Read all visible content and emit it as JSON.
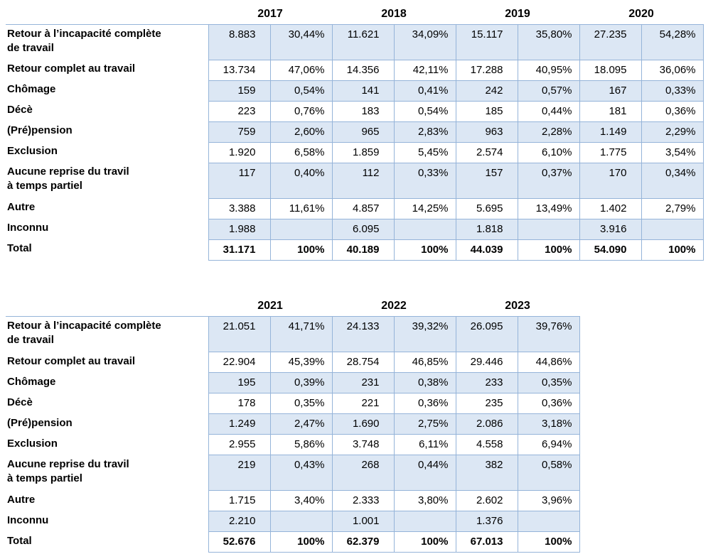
{
  "styles": {
    "band_fill": "#dce7f4",
    "border_color": "#95b4d9",
    "text_color": "#000000",
    "background": "#ffffff"
  },
  "tables": [
    {
      "name": "outcomes-table-2017-2020",
      "years": [
        "2017",
        "2018",
        "2019",
        "2020"
      ],
      "rows": [
        {
          "label_lines": [
            "Retour à l’incapacité complète",
            "de travail"
          ],
          "tall": true,
          "banded": true,
          "total": false,
          "cells": [
            [
              "8.883",
              "30,44%"
            ],
            [
              "11.621",
              "34,09%"
            ],
            [
              "15.117",
              "35,80%"
            ],
            [
              "27.235",
              "54,28%"
            ]
          ]
        },
        {
          "label_lines": [
            "Retour complet au travail"
          ],
          "tall": false,
          "banded": false,
          "total": false,
          "cells": [
            [
              "13.734",
              "47,06%"
            ],
            [
              "14.356",
              "42,11%"
            ],
            [
              "17.288",
              "40,95%"
            ],
            [
              "18.095",
              "36,06%"
            ]
          ]
        },
        {
          "label_lines": [
            "Chômage"
          ],
          "tall": false,
          "banded": true,
          "total": false,
          "cells": [
            [
              "159",
              "0,54%"
            ],
            [
              "141",
              "0,41%"
            ],
            [
              "242",
              "0,57%"
            ],
            [
              "167",
              "0,33%"
            ]
          ]
        },
        {
          "label_lines": [
            "Décè"
          ],
          "tall": false,
          "banded": false,
          "total": false,
          "cells": [
            [
              "223",
              "0,76%"
            ],
            [
              "183",
              "0,54%"
            ],
            [
              "185",
              "0,44%"
            ],
            [
              "181",
              "0,36%"
            ]
          ]
        },
        {
          "label_lines": [
            "(Pré)pension"
          ],
          "tall": false,
          "banded": true,
          "total": false,
          "cells": [
            [
              "759",
              "2,60%"
            ],
            [
              "965",
              "2,83%"
            ],
            [
              "963",
              "2,28%"
            ],
            [
              "1.149",
              "2,29%"
            ]
          ]
        },
        {
          "label_lines": [
            "Exclusion"
          ],
          "tall": false,
          "banded": false,
          "total": false,
          "cells": [
            [
              "1.920",
              "6,58%"
            ],
            [
              "1.859",
              "5,45%"
            ],
            [
              "2.574",
              "6,10%"
            ],
            [
              "1.775",
              "3,54%"
            ]
          ]
        },
        {
          "label_lines": [
            "Aucune reprise du travil",
            "à temps partiel"
          ],
          "tall": true,
          "banded": true,
          "total": false,
          "cells": [
            [
              "117",
              "0,40%"
            ],
            [
              "112",
              "0,33%"
            ],
            [
              "157",
              "0,37%"
            ],
            [
              "170",
              "0,34%"
            ]
          ]
        },
        {
          "label_lines": [
            "Autre"
          ],
          "tall": false,
          "banded": false,
          "total": false,
          "cells": [
            [
              "3.388",
              "11,61%"
            ],
            [
              "4.857",
              "14,25%"
            ],
            [
              "5.695",
              "13,49%"
            ],
            [
              "1.402",
              "2,79%"
            ]
          ]
        },
        {
          "label_lines": [
            "Inconnu"
          ],
          "tall": false,
          "banded": true,
          "total": false,
          "cells": [
            [
              "1.988",
              ""
            ],
            [
              "6.095",
              ""
            ],
            [
              "1.818",
              ""
            ],
            [
              "3.916",
              ""
            ]
          ]
        },
        {
          "label_lines": [
            "Total"
          ],
          "tall": false,
          "banded": false,
          "total": true,
          "cells": [
            [
              "31.171",
              "100%"
            ],
            [
              "40.189",
              "100%"
            ],
            [
              "44.039",
              "100%"
            ],
            [
              "54.090",
              "100%"
            ]
          ]
        }
      ]
    },
    {
      "name": "outcomes-table-2021-2023",
      "years": [
        "2021",
        "2022",
        "2023"
      ],
      "rows": [
        {
          "label_lines": [
            "Retour à l’incapacité complète",
            "de travail"
          ],
          "tall": true,
          "banded": true,
          "total": false,
          "cells": [
            [
              "21.051",
              "41,71%"
            ],
            [
              "24.133",
              "39,32%"
            ],
            [
              "26.095",
              "39,76%"
            ]
          ]
        },
        {
          "label_lines": [
            "Retour complet au travail"
          ],
          "tall": false,
          "banded": false,
          "total": false,
          "cells": [
            [
              "22.904",
              "45,39%"
            ],
            [
              "28.754",
              "46,85%"
            ],
            [
              "29.446",
              "44,86%"
            ]
          ]
        },
        {
          "label_lines": [
            "Chômage"
          ],
          "tall": false,
          "banded": true,
          "total": false,
          "cells": [
            [
              "195",
              "0,39%"
            ],
            [
              "231",
              "0,38%"
            ],
            [
              "233",
              "0,35%"
            ]
          ]
        },
        {
          "label_lines": [
            "Décè"
          ],
          "tall": false,
          "banded": false,
          "total": false,
          "cells": [
            [
              "178",
              "0,35%"
            ],
            [
              "221",
              "0,36%"
            ],
            [
              "235",
              "0,36%"
            ]
          ]
        },
        {
          "label_lines": [
            "(Pré)pension"
          ],
          "tall": false,
          "banded": true,
          "total": false,
          "cells": [
            [
              "1.249",
              "2,47%"
            ],
            [
              "1.690",
              "2,75%"
            ],
            [
              "2.086",
              "3,18%"
            ]
          ]
        },
        {
          "label_lines": [
            "Exclusion"
          ],
          "tall": false,
          "banded": false,
          "total": false,
          "cells": [
            [
              "2.955",
              "5,86%"
            ],
            [
              "3.748",
              "6,11%"
            ],
            [
              "4.558",
              "6,94%"
            ]
          ]
        },
        {
          "label_lines": [
            "Aucune reprise du travil",
            "à temps partiel"
          ],
          "tall": true,
          "banded": true,
          "total": false,
          "cells": [
            [
              "219",
              "0,43%"
            ],
            [
              "268",
              "0,44%"
            ],
            [
              "382",
              "0,58%"
            ]
          ]
        },
        {
          "label_lines": [
            "Autre"
          ],
          "tall": false,
          "banded": false,
          "total": false,
          "cells": [
            [
              "1.715",
              "3,40%"
            ],
            [
              "2.333",
              "3,80%"
            ],
            [
              "2.602",
              "3,96%"
            ]
          ]
        },
        {
          "label_lines": [
            "Inconnu"
          ],
          "tall": false,
          "banded": true,
          "total": false,
          "cells": [
            [
              "2.210",
              ""
            ],
            [
              "1.001",
              ""
            ],
            [
              "1.376",
              ""
            ]
          ]
        },
        {
          "label_lines": [
            "Total"
          ],
          "tall": false,
          "banded": false,
          "total": true,
          "cells": [
            [
              "52.676",
              "100%"
            ],
            [
              "62.379",
              "100%"
            ],
            [
              "67.013",
              "100%"
            ]
          ]
        }
      ]
    }
  ]
}
